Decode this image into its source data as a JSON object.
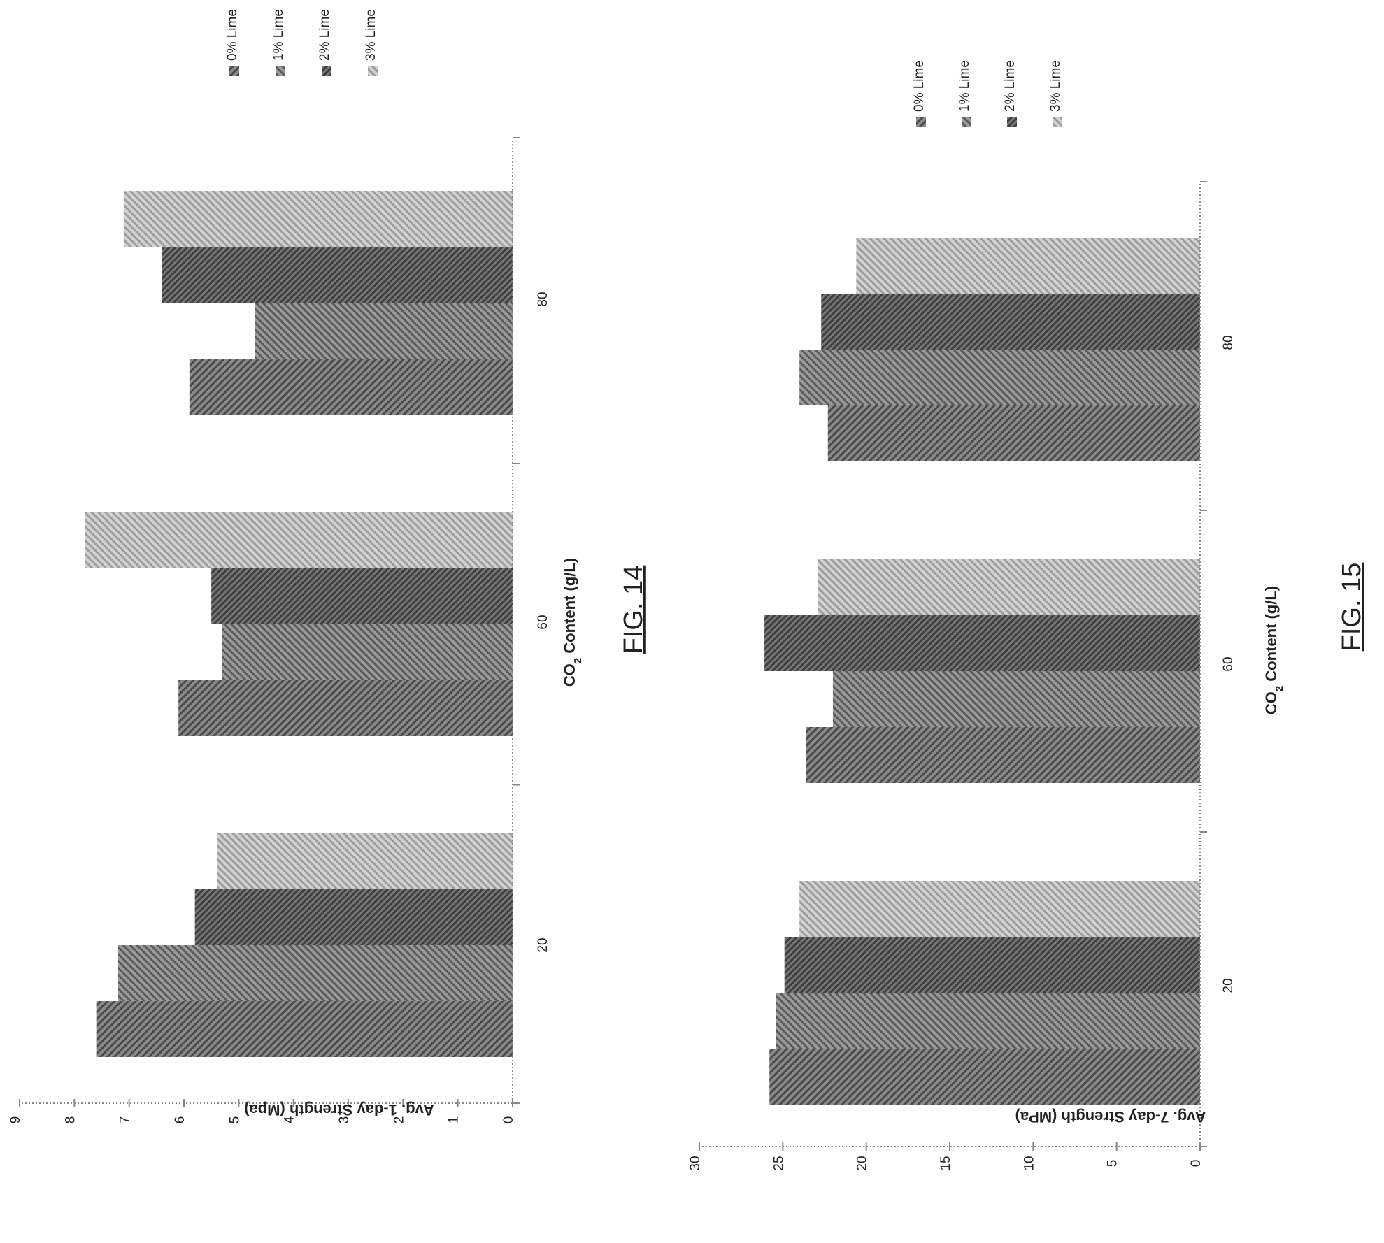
{
  "chart_data": [
    {
      "type": "bar",
      "figure_label": "FIG. 14",
      "categories": [
        "20",
        "60",
        "80"
      ],
      "series": [
        {
          "name": "0% Lime",
          "values": [
            7.6,
            6.1,
            5.9
          ]
        },
        {
          "name": "1% Lime",
          "values": [
            7.2,
            5.3,
            4.7
          ]
        },
        {
          "name": "2% Lime",
          "values": [
            5.8,
            5.5,
            6.4
          ]
        },
        {
          "name": "3% Lime",
          "values": [
            5.4,
            7.8,
            7.1
          ]
        }
      ],
      "xlabel": "CO",
      "xlabel_sub": "2",
      "xlabel_tail": " Content (g/L)",
      "ylabel": "Avg. 1-day Strength (Mpa)",
      "ylim": [
        0,
        9
      ],
      "yticks": [
        "0",
        "1",
        "2",
        "3",
        "4",
        "5",
        "6",
        "7",
        "8",
        "9"
      ],
      "legend": "right",
      "grid": false
    },
    {
      "type": "bar",
      "figure_label": "FIG. 15",
      "categories": [
        "20",
        "60",
        "80"
      ],
      "series": [
        {
          "name": "0% Lime",
          "values": [
            25.8,
            23.6,
            22.3
          ]
        },
        {
          "name": "1% Lime",
          "values": [
            25.4,
            22.0,
            24.0
          ]
        },
        {
          "name": "2% Lime",
          "values": [
            24.9,
            26.1,
            22.7
          ]
        },
        {
          "name": "3% Lime",
          "values": [
            24.0,
            22.9,
            20.6
          ]
        }
      ],
      "xlabel": "CO",
      "xlabel_sub": "2",
      "xlabel_tail": " Content (g/L)",
      "ylabel": "Avg. 7-day Strength (MPa)",
      "ylim": [
        0,
        30
      ],
      "yticks": [
        "0",
        "5",
        "10",
        "15",
        "20",
        "25",
        "30"
      ],
      "legend": "right",
      "grid": false
    }
  ],
  "colors": [
    "#6f6f6f",
    "#828282",
    "#5e5e5e",
    "#b3b3b3"
  ]
}
